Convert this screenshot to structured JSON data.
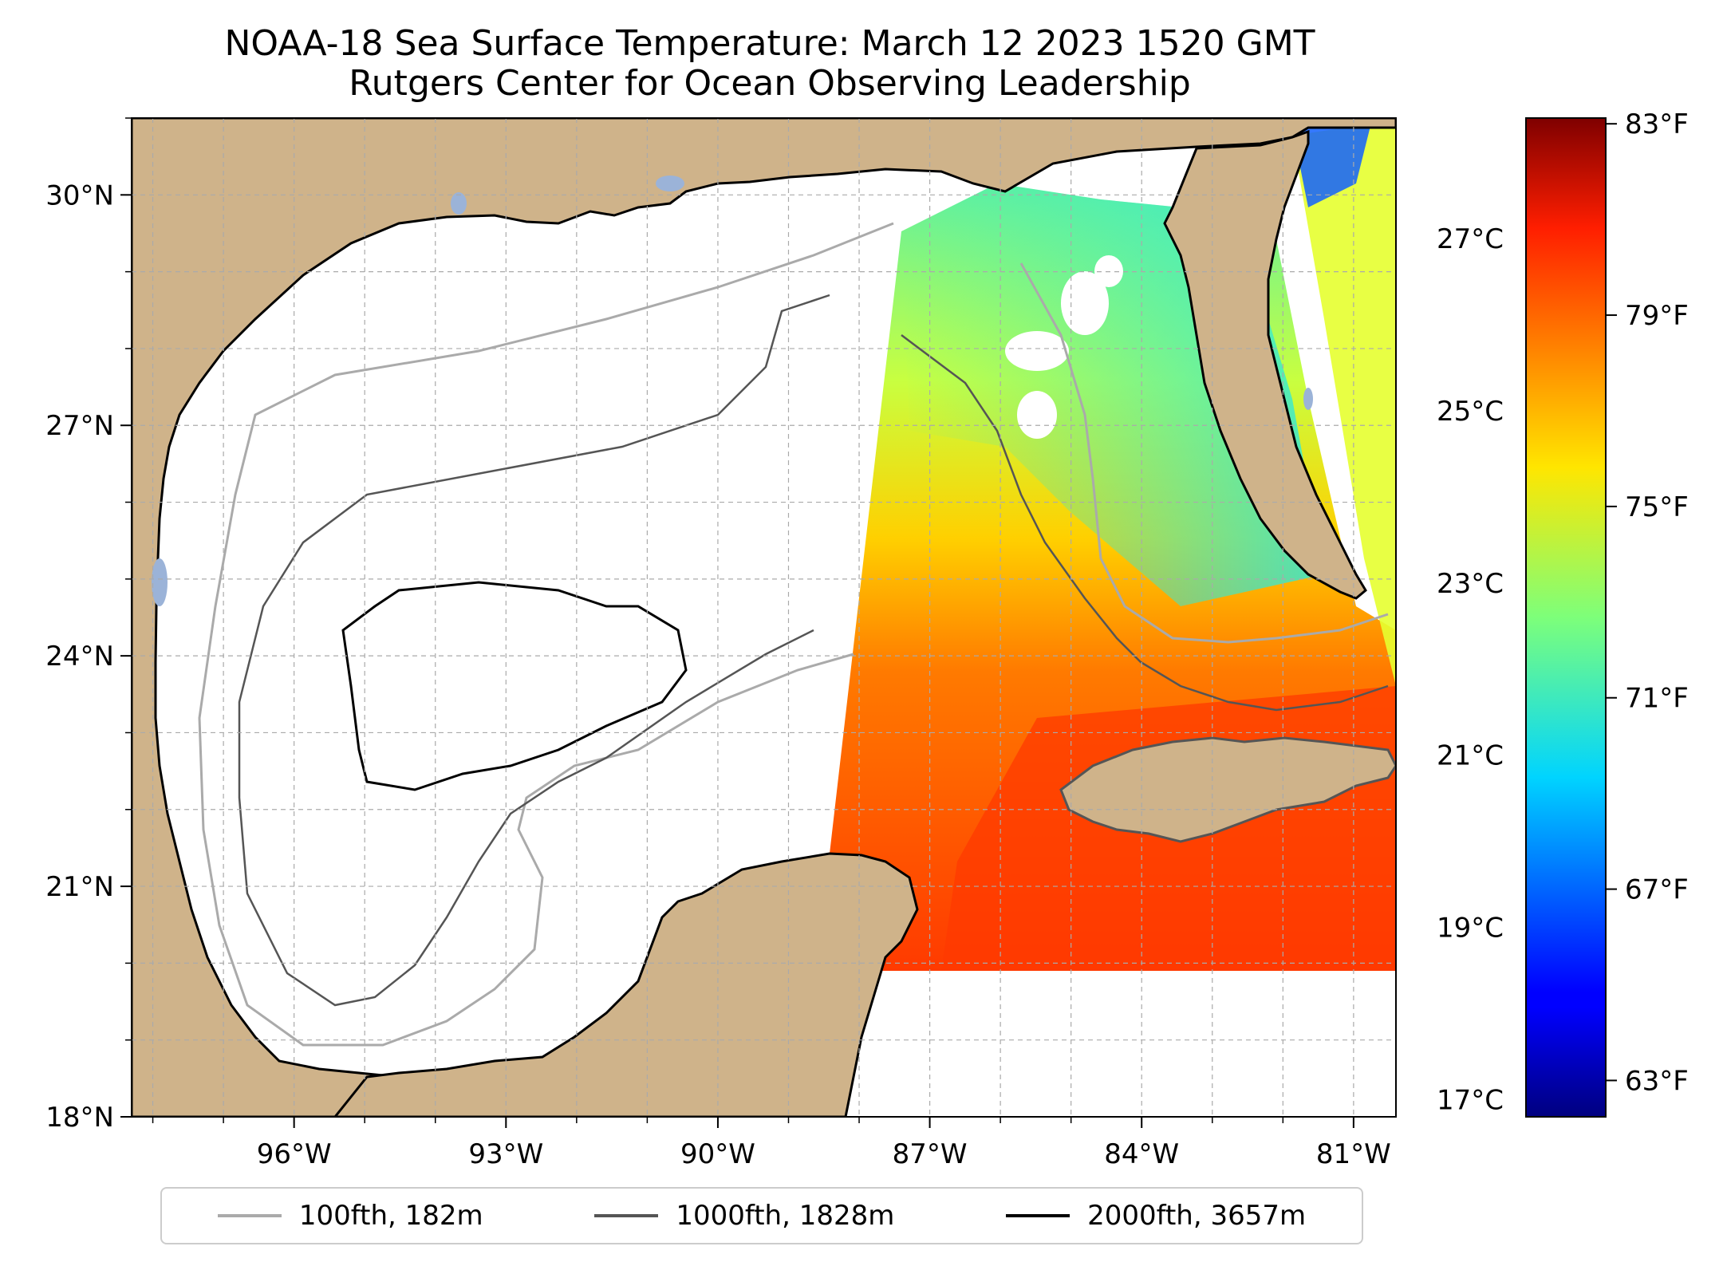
{
  "title": {
    "line1": "NOAA-18 Sea Surface Temperature: March 12 2023 1520 GMT",
    "line2": "Rutgers Center for Ocean Observing Leadership"
  },
  "map": {
    "lon_range": [
      -98.3,
      -80.4
    ],
    "lat_range": [
      18.0,
      31.0
    ],
    "lon_ticks": [
      {
        "value": -96,
        "label": "96°W"
      },
      {
        "value": -93,
        "label": "93°W"
      },
      {
        "value": -90,
        "label": "90°W"
      },
      {
        "value": -87,
        "label": "87°W"
      },
      {
        "value": -84,
        "label": "84°W"
      },
      {
        "value": -81,
        "label": "81°W"
      }
    ],
    "lat_ticks": [
      {
        "value": 18,
        "label": "18°N"
      },
      {
        "value": 21,
        "label": "21°N"
      },
      {
        "value": 24,
        "label": "24°N"
      },
      {
        "value": 27,
        "label": "27°N"
      },
      {
        "value": 30,
        "label": "30°N"
      }
    ],
    "grid": true,
    "colors": {
      "land": "#cfb38a",
      "water_no_data": "#ffffff",
      "lakes": "#9bb3d8",
      "grid": "#aaaaaa"
    }
  },
  "colorbar": {
    "colormap": "jet",
    "range_c": [
      16.8,
      28.4
    ],
    "celsius_ticks": [
      {
        "value": 17,
        "label": "17°C"
      },
      {
        "value": 19,
        "label": "19°C"
      },
      {
        "value": 21,
        "label": "21°C"
      },
      {
        "value": 23,
        "label": "23°C"
      },
      {
        "value": 25,
        "label": "25°C"
      },
      {
        "value": 27,
        "label": "27°C"
      }
    ],
    "fahrenheit_ticks": [
      {
        "value": 63,
        "label": "63°F"
      },
      {
        "value": 67,
        "label": "67°F"
      },
      {
        "value": 71,
        "label": "71°F"
      },
      {
        "value": 75,
        "label": "75°F"
      },
      {
        "value": 79,
        "label": "79°F"
      },
      {
        "value": 83,
        "label": "83°F"
      }
    ]
  },
  "legend": {
    "items": [
      {
        "label": "100fth, 182m",
        "color": "#aaaaaa"
      },
      {
        "label": "1000fth, 1828m",
        "color": "#555555"
      },
      {
        "label": "2000fth, 3657m",
        "color": "#000000"
      }
    ]
  }
}
